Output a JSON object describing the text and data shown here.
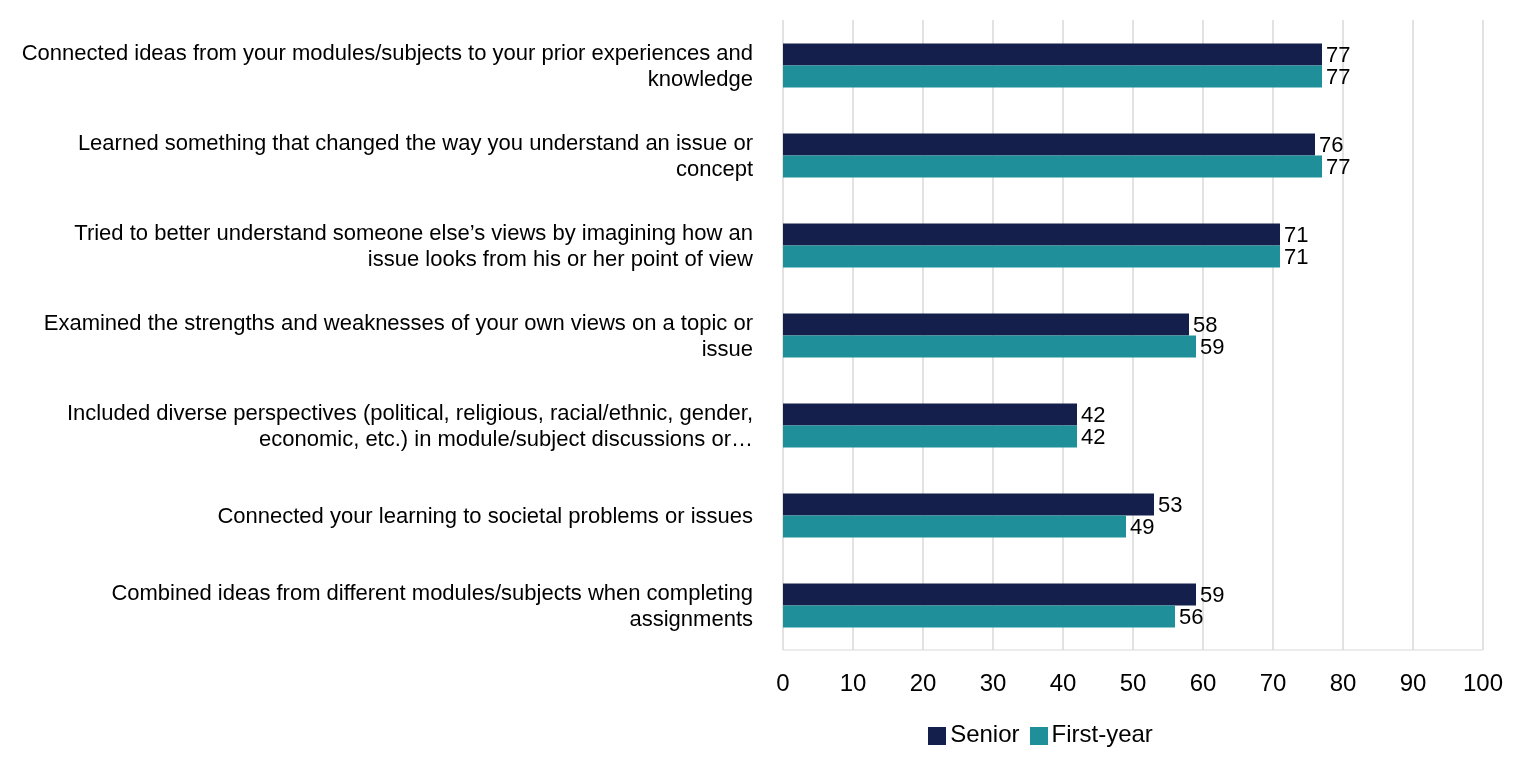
{
  "chart_data": {
    "type": "bar",
    "orientation": "horizontal",
    "categories": [
      "Connected ideas from your modules/subjects to your prior experiences and knowledge",
      "Learned something that changed the way you understand an issue or concept",
      "Tried to better understand someone else’s views by imagining how an issue looks from his or her point of view",
      "Examined the strengths and weaknesses of your own views on a topic or issue",
      "Included diverse perspectives (political, religious, racial/ethnic, gender, economic, etc.) in module/subject discussions or…",
      "Connected your learning to societal problems or issues",
      "Combined ideas from different modules/subjects when completing assignments"
    ],
    "series": [
      {
        "name": "Senior",
        "color": "#14204b",
        "values": [
          77,
          76,
          71,
          58,
          42,
          53,
          59
        ]
      },
      {
        "name": "First-year",
        "color": "#1f9099",
        "values": [
          77,
          77,
          71,
          59,
          42,
          49,
          56
        ]
      }
    ],
    "xlim": [
      0,
      100
    ],
    "xticks": [
      0,
      10,
      20,
      30,
      40,
      50,
      60,
      70,
      80,
      90,
      100
    ],
    "grid": "x",
    "legend": "bottom",
    "data_labels": true
  }
}
